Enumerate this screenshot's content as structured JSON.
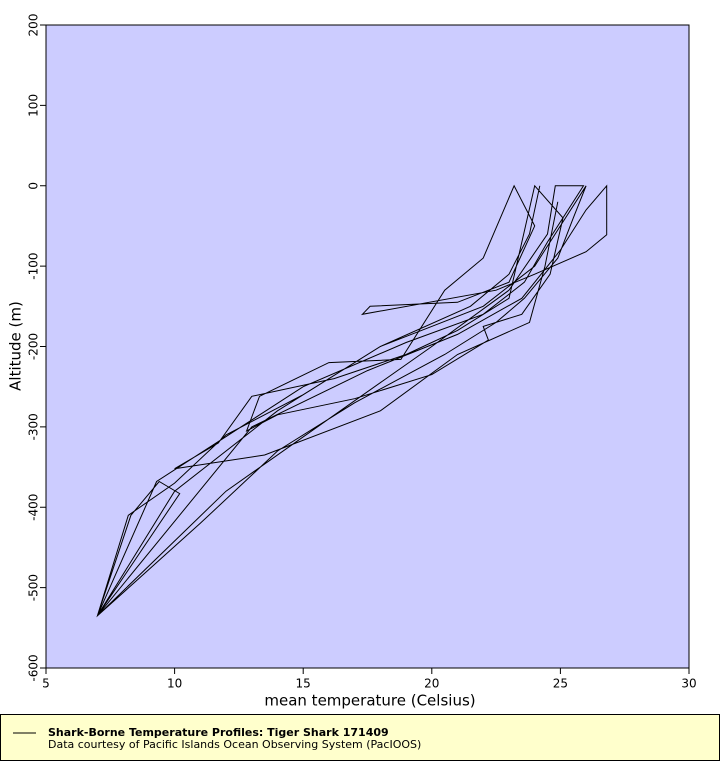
{
  "chart_data": {
    "type": "line",
    "xlabel": "mean temperature (Celsius)",
    "ylabel": "Altitude (m)",
    "xlim": [
      5,
      30
    ],
    "ylim": [
      -600,
      200
    ],
    "xticks": [
      5,
      10,
      15,
      20,
      25,
      30
    ],
    "yticks": [
      -600,
      -500,
      -400,
      -300,
      -200,
      -100,
      0,
      100,
      200
    ],
    "plot_background": "#ccccff",
    "legend_title": "Data courtesy of Pacific Islands Ocean Observing System (PacIOOS)",
    "series": [
      {
        "name": "Shark-Borne Temperature Profiles: Tiger Shark 171409",
        "color": "#000000",
        "x": [
          24.2,
          23.8,
          23.0,
          21.5,
          18.0,
          14.0,
          10.0,
          7.0,
          12.0,
          16.0,
          20.0,
          23.0,
          24.5,
          24.8,
          25.9,
          24.5,
          23.6,
          22.0,
          19.0,
          15.0,
          9.3,
          7.0,
          8.3,
          9.4,
          10.2,
          7.0,
          13.0,
          17.5,
          21.0,
          23.5,
          25.0,
          26.0,
          26.8,
          26.8,
          26.0,
          24.0,
          22.5,
          17.3,
          17.6,
          21.0,
          23.0,
          24.0,
          23.2,
          22.0,
          20.5,
          18.8,
          16.0,
          13.3,
          12.8,
          14.0,
          17.0,
          20.0,
          22.2,
          22.0,
          23.5,
          24.6,
          25.1,
          24.0,
          23.0,
          21.0,
          19.0,
          16.2,
          13.0,
          11.7,
          10.0,
          13.5,
          18.0,
          21.0,
          23.8,
          24.4,
          24.9,
          null,
          26.0,
          25.0,
          24.0,
          22.0,
          18.0,
          15.0,
          12.0,
          10.0,
          8.2,
          7.0,
          11.0,
          14.0,
          17.0,
          20.5,
          22.5,
          23.6,
          24.9,
          25.5,
          26.0
        ],
        "values": [
          0,
          -60,
          -110,
          -150,
          -200,
          -280,
          -380,
          -535,
          -380,
          -290,
          -200,
          -130,
          -60,
          0,
          0,
          -70,
          -120,
          -160,
          -195,
          -250,
          -368,
          -535,
          -410,
          -368,
          -383,
          -535,
          -300,
          -230,
          -185,
          -140,
          -80,
          -30,
          0,
          -61,
          -82,
          -110,
          -130,
          -160,
          -150,
          -145,
          -120,
          -50,
          0,
          -90,
          -130,
          -216,
          -220,
          -262,
          -305,
          -285,
          -265,
          -235,
          -192,
          -175,
          -160,
          -110,
          -40,
          0,
          -140,
          -180,
          -210,
          -240,
          -262,
          -320,
          -352,
          -335,
          -280,
          -210,
          -170,
          -100,
          -20,
          null,
          0,
          -50,
          -100,
          -150,
          -200,
          -260,
          -310,
          -370,
          -410,
          -535,
          -420,
          -330,
          -270,
          -210,
          -170,
          -140,
          -90,
          -40,
          0
        ]
      }
    ]
  }
}
